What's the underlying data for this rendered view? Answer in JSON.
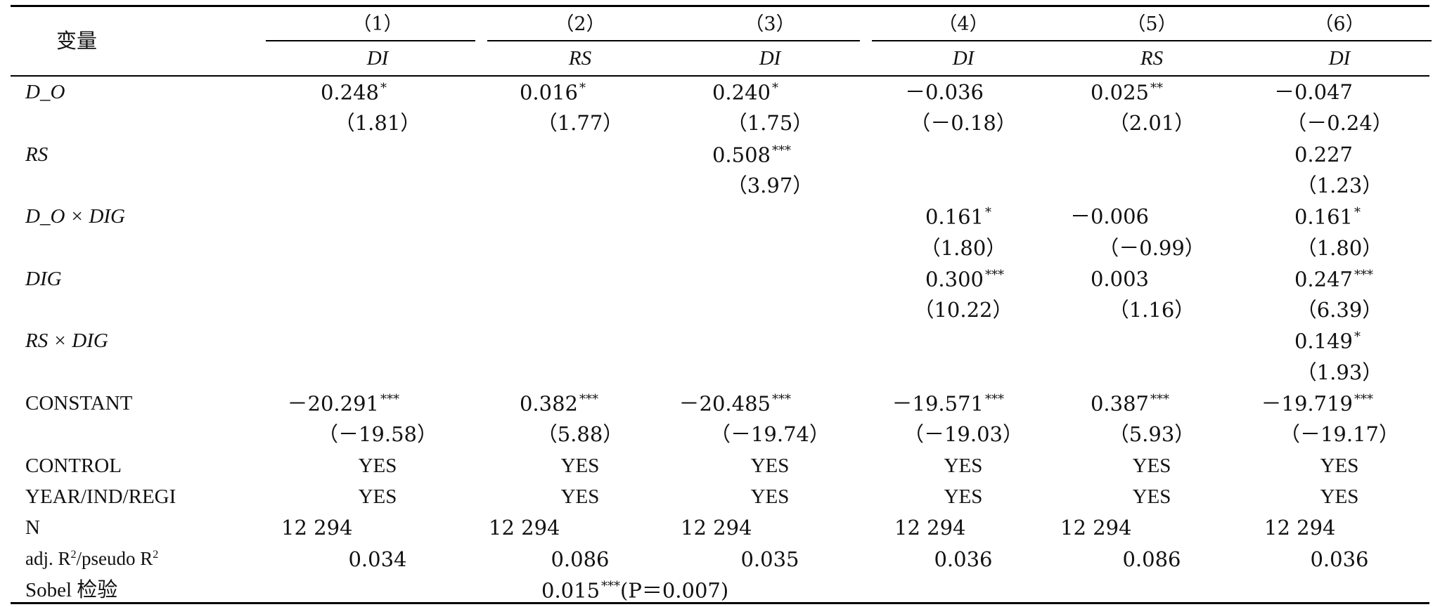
{
  "table": {
    "header": {
      "var_label": "变量",
      "model_numbers": [
        "（1）",
        "（2）",
        "（3）",
        "（4）",
        "（5）",
        "（6）"
      ],
      "dep_vars": [
        "DI",
        "RS",
        "DI",
        "DI",
        "RS",
        "DI"
      ]
    },
    "rows": [
      {
        "var": "D_O",
        "coef": [
          {
            "v": "0.248",
            "s": "*"
          },
          {
            "v": "0.016",
            "s": "*"
          },
          {
            "v": "0.240",
            "s": "*"
          },
          {
            "v": "－0.036",
            "s": ""
          },
          {
            "v": "0.025",
            "s": "**"
          },
          {
            "v": "－0.047",
            "s": ""
          }
        ],
        "t": [
          "（1.81）",
          "（1.77）",
          "（1.75）",
          "（－0.18）",
          "（2.01）",
          "（－0.24）"
        ]
      },
      {
        "var": "RS",
        "coef": [
          null,
          null,
          {
            "v": "0.508",
            "s": "***"
          },
          null,
          null,
          {
            "v": "0.227",
            "s": ""
          }
        ],
        "t": [
          null,
          null,
          "（3.97）",
          null,
          null,
          "（1.23）"
        ]
      },
      {
        "var": "D_O × DIG",
        "coef": [
          null,
          null,
          null,
          {
            "v": "0.161",
            "s": "*"
          },
          {
            "v": "－0.006",
            "s": ""
          },
          {
            "v": "0.161",
            "s": "*"
          }
        ],
        "t": [
          null,
          null,
          null,
          "（1.80）",
          "（－0.99）",
          "（1.80）"
        ]
      },
      {
        "var": "DIG",
        "coef": [
          null,
          null,
          null,
          {
            "v": "0.300",
            "s": "***"
          },
          {
            "v": "0.003",
            "s": ""
          },
          {
            "v": "0.247",
            "s": "***"
          }
        ],
        "t": [
          null,
          null,
          null,
          "（10.22）",
          "（1.16）",
          "（6.39）"
        ]
      },
      {
        "var": "RS × DIG",
        "coef": [
          null,
          null,
          null,
          null,
          null,
          {
            "v": "0.149",
            "s": "*"
          }
        ],
        "t": [
          null,
          null,
          null,
          null,
          null,
          "（1.93）"
        ]
      },
      {
        "var": "CONSTANT",
        "coef": [
          {
            "v": "－20.291",
            "s": "***"
          },
          {
            "v": "0.382",
            "s": "***"
          },
          {
            "v": "－20.485",
            "s": "***"
          },
          {
            "v": "－19.571",
            "s": "***"
          },
          {
            "v": "0.387",
            "s": "***"
          },
          {
            "v": "－19.719",
            "s": "***"
          }
        ],
        "t": [
          "（－19.58）",
          "（5.88）",
          "（－19.74）",
          "（－19.03）",
          "（5.93）",
          "（－19.17）"
        ]
      }
    ],
    "control": {
      "label": "CONTROL",
      "values": [
        "YES",
        "YES",
        "YES",
        "YES",
        "YES",
        "YES"
      ]
    },
    "fixed": {
      "label": "YEAR/IND/REGI",
      "values": [
        "YES",
        "YES",
        "YES",
        "YES",
        "YES",
        "YES"
      ]
    },
    "n": {
      "label": "N",
      "values": [
        "12 294",
        "12 294",
        "12 294",
        "12 294",
        "12 294",
        "12 294"
      ]
    },
    "r2": {
      "label_a": "adj. R",
      "label_sep": "/pseudo R",
      "sup": "2",
      "values": [
        "0.034",
        "0.086",
        "0.035",
        "0.036",
        "0.086",
        "0.036"
      ]
    },
    "sobel": {
      "label": "Sobel 检验",
      "value": "0.015",
      "stars": "***",
      "p": "(P＝0.007)"
    }
  }
}
